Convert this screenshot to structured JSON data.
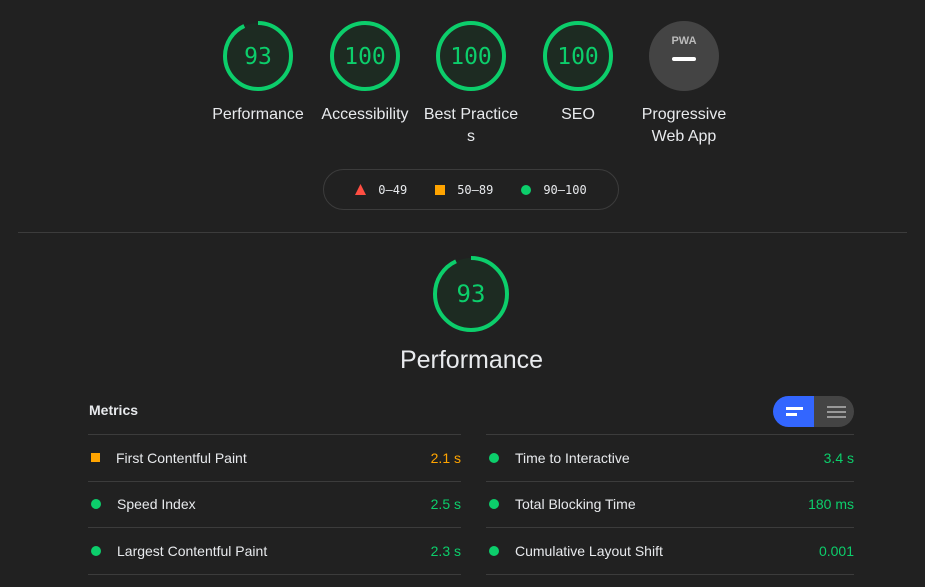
{
  "colors": {
    "pass": "#0cce6b",
    "average": "#ffa400",
    "fail": "#ff4e42",
    "accent": "#3366ff"
  },
  "gauges": [
    {
      "label": "Performance",
      "score": 93
    },
    {
      "label": "Accessibility",
      "score": 100
    },
    {
      "label": "Best Practices",
      "score": 100
    },
    {
      "label": "SEO",
      "score": 100
    },
    {
      "label": "Progressive Web App",
      "badge": "PWA",
      "icon": "pwa-dash-icon"
    }
  ],
  "legend": [
    {
      "icon": "triangle",
      "range": "0–49"
    },
    {
      "icon": "square",
      "range": "50–89"
    },
    {
      "icon": "circle",
      "range": "90–100"
    }
  ],
  "performance": {
    "score": 93,
    "title": "Performance"
  },
  "metrics": {
    "heading": "Metrics",
    "view_toggle": {
      "selected": "summary-view",
      "options": [
        "summary-view",
        "list-view"
      ]
    },
    "left": [
      {
        "name": "First Contentful Paint",
        "value": "2.1 s",
        "rating": "average"
      },
      {
        "name": "Speed Index",
        "value": "2.5 s",
        "rating": "pass"
      },
      {
        "name": "Largest Contentful Paint",
        "value": "2.3 s",
        "rating": "pass"
      }
    ],
    "right": [
      {
        "name": "Time to Interactive",
        "value": "3.4 s",
        "rating": "pass"
      },
      {
        "name": "Total Blocking Time",
        "value": "180 ms",
        "rating": "pass"
      },
      {
        "name": "Cumulative Layout Shift",
        "value": "0.001",
        "rating": "pass"
      }
    ]
  }
}
